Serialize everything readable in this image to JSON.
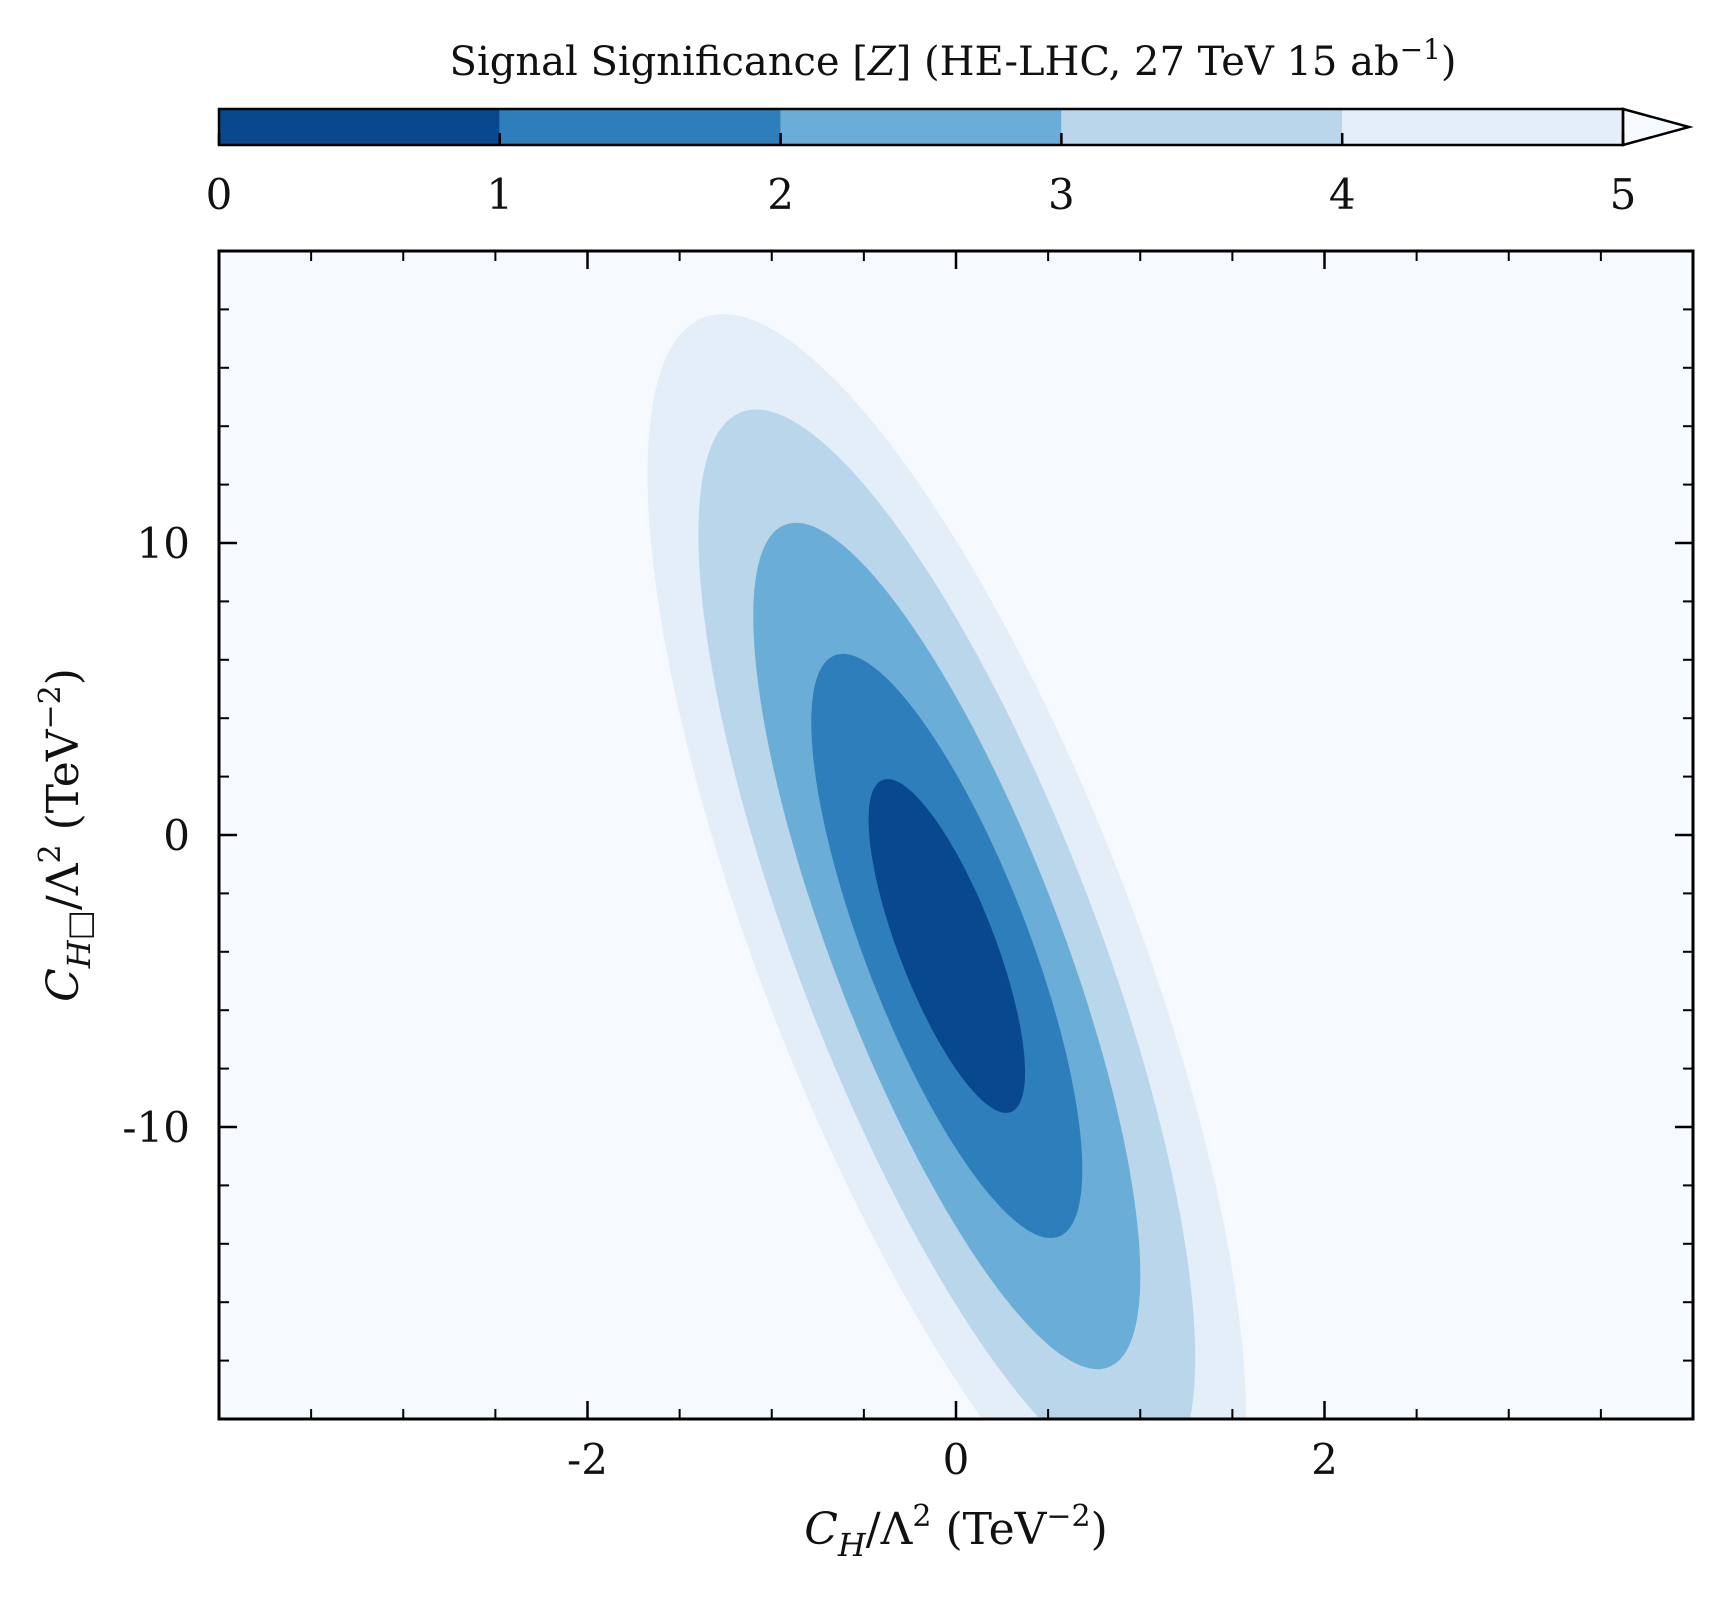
{
  "chart_data": {
    "type": "contour",
    "title": "Signal Significance [Z] (HE-LHC, 27 TeV 15 ab−1)",
    "title_parts": [
      "Signal Significance [",
      "Z",
      "] (HE-LHC, 27 TeV 15 ab",
      "−1",
      ")"
    ],
    "xlabel": "C_H/Λ² (TeV⁻²)",
    "ylabel": "C_H□/Λ² (TeV⁻²)",
    "xlabel_parts": {
      "c": "C",
      "sub": "H",
      "mid": "/Λ",
      "sq": "2",
      "unit": " (TeV",
      "exp": "−2",
      "close": ")"
    },
    "ylabel_parts": {
      "c": "C",
      "sub": "H□",
      "mid": "/Λ",
      "sq": "2",
      "unit": " (TeV",
      "exp": "−2",
      "close": ")"
    },
    "xlim": [
      -4,
      4
    ],
    "ylim": [
      -20,
      20
    ],
    "xticks": [
      -2,
      0,
      2
    ],
    "xtick_labels": [
      "-2",
      "0",
      "2"
    ],
    "xminor": [
      -3.5,
      -3,
      -2.5,
      -1.5,
      -1,
      -0.5,
      0.5,
      1,
      1.5,
      2.5,
      3,
      3.5
    ],
    "yticks": [
      -10,
      0,
      10
    ],
    "ytick_labels": [
      "-10",
      "0",
      "10"
    ],
    "yminor": [
      -18,
      -16,
      -14,
      -12,
      -8,
      -6,
      -4,
      -2,
      2,
      4,
      6,
      8,
      12,
      14,
      16,
      18
    ],
    "colorbar": {
      "levels": [
        0,
        1,
        2,
        3,
        4,
        5
      ],
      "tick_labels": [
        "0",
        "1",
        "2",
        "3",
        "4",
        "5"
      ],
      "extend": "max",
      "location": "top"
    },
    "colors": [
      "#08488e",
      "#2e7ebb",
      "#6aadd6",
      "#bad6eb",
      "#e3eef8",
      "#f6faff"
    ],
    "contours": [
      {
        "level": 5,
        "center": [
          -0.05,
          -3.8
        ],
        "semi_axes": [
          5.3,
          1.05
        ],
        "angle_deg": -76.2
      },
      {
        "level": 4,
        "center": [
          -0.05,
          -3.8
        ],
        "semi_axes": [
          4.5,
          0.84
        ],
        "angle_deg": -76.2
      },
      {
        "level": 3,
        "center": [
          -0.05,
          -3.8
        ],
        "semi_axes": [
          3.55,
          0.64
        ],
        "angle_deg": -76.2
      },
      {
        "level": 2,
        "center": [
          -0.05,
          -3.8
        ],
        "semi_axes": [
          2.45,
          0.46
        ],
        "angle_deg": -76.2
      },
      {
        "level": 1,
        "center": [
          -0.05,
          -3.8
        ],
        "semi_axes": [
          1.4,
          0.27
        ],
        "angle_deg": -76.2
      }
    ]
  }
}
